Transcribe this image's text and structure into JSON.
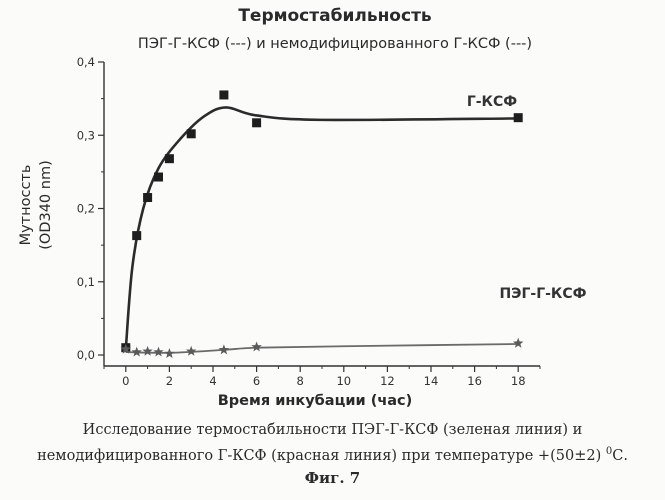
{
  "chart_data": {
    "type": "line",
    "title": "Термостабильность",
    "subtitle": "ПЭГ-Г-КСФ (---) и немодифицированного Г-КСФ (---)",
    "xlabel": "Время инкубации (час)",
    "ylabel_line1": "Мутноссть",
    "ylabel_line2": "(OD340 nm)",
    "xlim": [
      -1,
      19
    ],
    "ylim": [
      -0.015,
      0.4
    ],
    "x_ticks": [
      "0",
      "2",
      "4",
      "6",
      "8",
      "10",
      "12",
      "14",
      "16",
      "18"
    ],
    "y_ticks": [
      "0,0",
      "0,1",
      "0,2",
      "0,3",
      "0,4"
    ],
    "grid": false,
    "series": [
      {
        "name": "Г-КСФ",
        "marker": "square",
        "x": [
          0,
          0.5,
          1,
          1.5,
          2,
          3,
          4.5,
          6,
          18
        ],
        "y": [
          0.01,
          0.163,
          0.215,
          0.243,
          0.268,
          0.302,
          0.355,
          0.317,
          0.324
        ]
      },
      {
        "name": "ПЭГ-Г-КСФ",
        "marker": "star",
        "x": [
          0,
          0.5,
          1,
          1.5,
          2,
          3,
          4.5,
          6,
          18
        ],
        "y": [
          0.008,
          0.004,
          0.005,
          0.004,
          0.002,
          0.005,
          0.007,
          0.011,
          0.016
        ]
      }
    ]
  },
  "caption": {
    "line1": "Исследование термостабильности ПЭГ-Г-КСФ (зеленая линия)  и",
    "line2_main": "немодифицированного Г-КСФ (красная линия) при температуре +(50±2)",
    "line2_sup": "0",
    "line2_end": "С."
  },
  "figure_label": "Фиг. 7"
}
